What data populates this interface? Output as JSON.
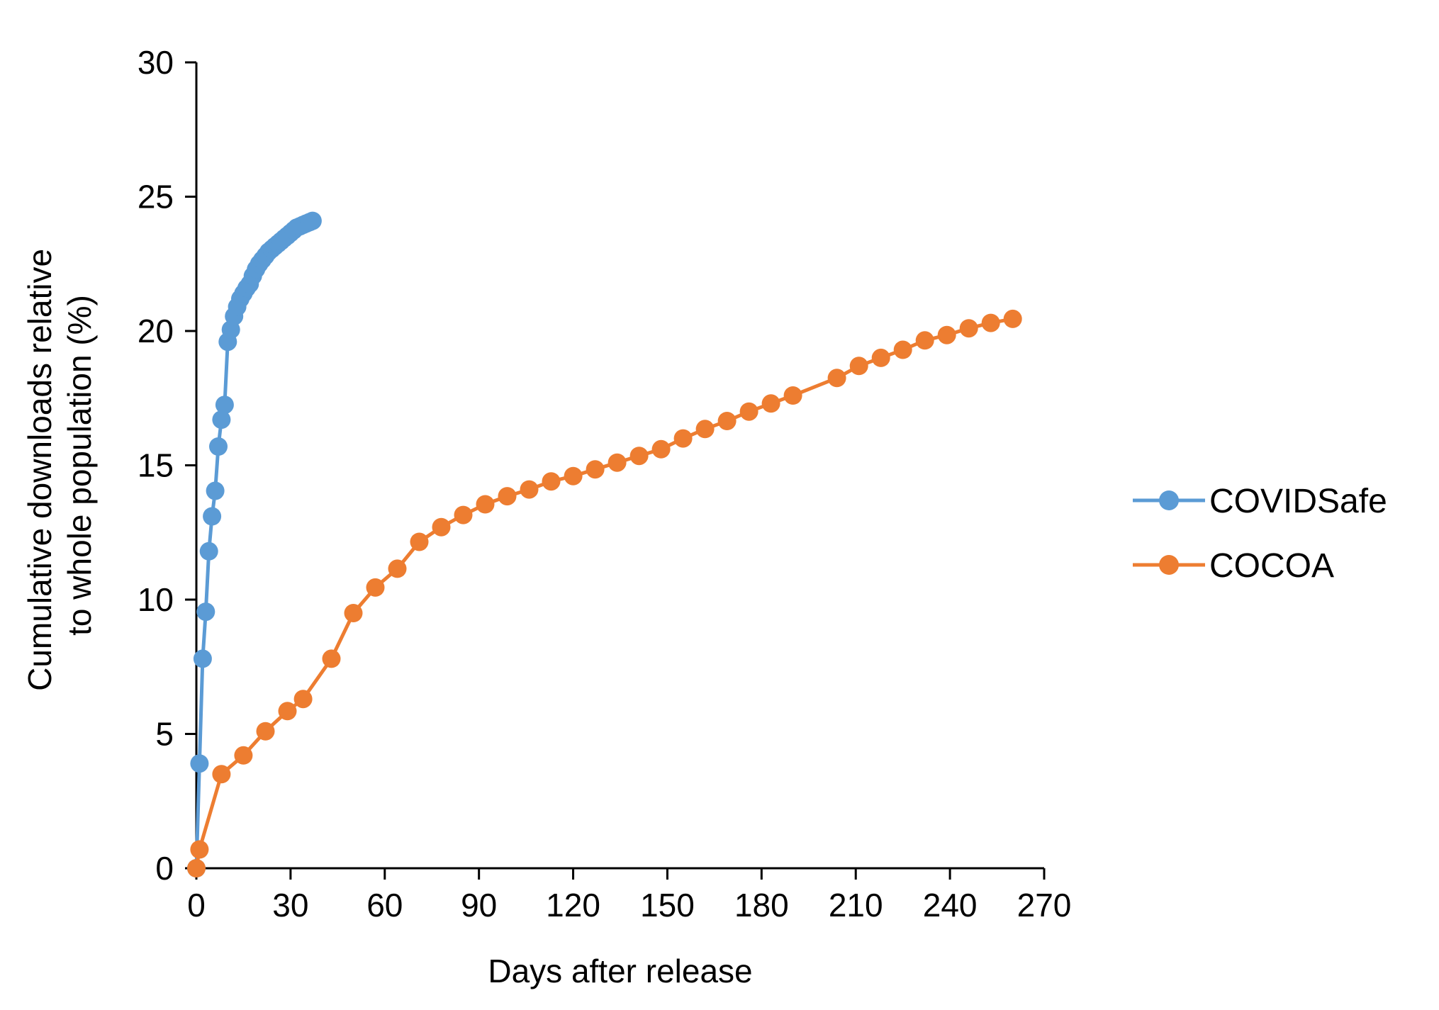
{
  "chart_data": {
    "type": "line",
    "xlabel": "Days after release",
    "ylabel_line1": "Cumulative downloads relative",
    "ylabel_line2": "to whole population (%)",
    "xlim": [
      0,
      270
    ],
    "ylim": [
      0,
      30
    ],
    "x_ticks": [
      "0",
      "30",
      "60",
      "90",
      "120",
      "150",
      "180",
      "210",
      "240",
      "270"
    ],
    "y_ticks": [
      "0",
      "5",
      "10",
      "15",
      "20",
      "25",
      "30"
    ],
    "grid": false,
    "legend_position": "right",
    "series": [
      {
        "name": "COVIDSafe",
        "color": "#5B9BD5",
        "x": [
          0,
          1,
          2,
          3,
          4,
          5,
          6,
          7,
          8,
          9,
          10,
          11,
          12,
          13,
          14,
          15,
          16,
          17,
          18,
          19,
          20,
          21,
          22,
          23,
          24,
          25,
          26,
          27,
          28,
          29,
          30,
          31,
          32,
          33,
          34,
          35,
          36,
          37
        ],
        "y": [
          0,
          3.9,
          7.8,
          9.55,
          11.8,
          13.1,
          14.05,
          15.7,
          16.7,
          17.25,
          19.6,
          20.05,
          20.55,
          20.9,
          21.2,
          21.4,
          21.6,
          21.75,
          22.05,
          22.3,
          22.5,
          22.65,
          22.8,
          22.95,
          23.05,
          23.15,
          23.25,
          23.35,
          23.45,
          23.55,
          23.65,
          23.75,
          23.85,
          23.9,
          23.95,
          24.0,
          24.05,
          24.1
        ]
      },
      {
        "name": "COCOA",
        "color": "#ED7D31",
        "x": [
          0,
          1,
          8,
          15,
          22,
          29,
          34,
          43,
          50,
          57,
          64,
          71,
          78,
          85,
          92,
          99,
          106,
          113,
          120,
          127,
          134,
          141,
          148,
          155,
          162,
          169,
          176,
          183,
          190,
          204,
          211,
          218,
          225,
          232,
          239,
          246,
          253,
          260
        ],
        "y": [
          0,
          0.7,
          3.5,
          4.2,
          5.1,
          5.85,
          6.3,
          7.8,
          9.5,
          10.45,
          11.15,
          12.15,
          12.7,
          13.15,
          13.55,
          13.85,
          14.1,
          14.4,
          14.6,
          14.85,
          15.1,
          15.35,
          15.6,
          16.0,
          16.35,
          16.65,
          17.0,
          17.3,
          17.6,
          18.25,
          18.7,
          19.0,
          19.3,
          19.65,
          19.85,
          20.1,
          20.3,
          20.45
        ]
      }
    ]
  }
}
